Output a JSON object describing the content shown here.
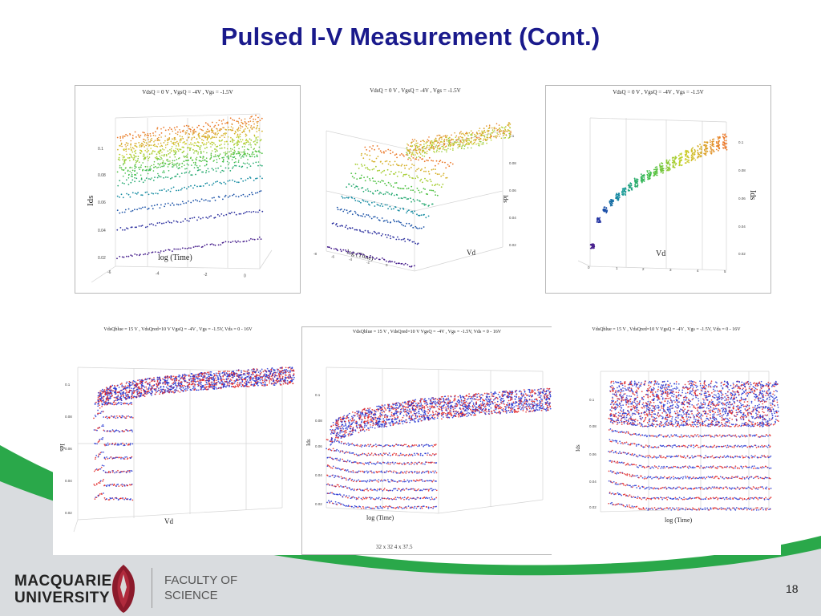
{
  "slide": {
    "title": "Pulsed I-V Measurement (Cont.)",
    "page_number": "18"
  },
  "footer": {
    "university_line1": "MACQUARIE",
    "university_line2": "UNIVERSITY",
    "faculty_line1": "FACULTY OF",
    "faculty_line2": "SCIENCE"
  },
  "colors": {
    "title": "#1a1a8c",
    "swoosh_green": "#2aa84a",
    "swoosh_grey": "#d9dcdf",
    "series_red": "#e02020",
    "series_blue": "#2030d0"
  },
  "top_plots": [
    {
      "heading": "VdsQ = 0 V , VgsQ = -4V , Vgs = -1.5V",
      "axis_labels": [
        "Ids",
        "log (Time)"
      ],
      "z_ticks": [
        "0.1",
        "0.08",
        "0.06",
        "0.04",
        "0.02"
      ],
      "x_ticks": [
        "-6",
        "-4",
        "-2",
        "0"
      ]
    },
    {
      "heading": "VdsQ = 0 V , VgsQ = -4V , Vgs = -1.5V",
      "axis_labels": [
        "Ids",
        "log (Time)",
        "Vd"
      ],
      "z_ticks": [
        "0.1",
        "0.08",
        "0.06",
        "0.04",
        "0.02"
      ],
      "x_ticks": [
        "-8",
        "-6",
        "-4",
        "-2",
        "0"
      ]
    },
    {
      "heading": "VdsQ = 0 V , VgsQ = -4V , Vgs = -1.5V",
      "axis_labels": [
        "Ids",
        "Vd"
      ],
      "z_ticks": [
        "0.1",
        "0.08",
        "0.06",
        "0.04",
        "0.02"
      ],
      "x_ticks": [
        "0",
        "1",
        "2",
        "3",
        "4",
        "5"
      ]
    }
  ],
  "bottom_plots": [
    {
      "heading": "VdsQblue = 15 V , VdsQred=10 V VgsQ = -4V , Vgs = -1.5V, Vds = 0 - 16V",
      "axis_labels": [
        "Ids",
        "Vd"
      ],
      "z_ticks": [
        "0.1",
        "0.08",
        "0.06",
        "0.04",
        "0.02"
      ]
    },
    {
      "heading": "VdsQblue = 15 V , VdsQred=10 V VgsQ = -4V , Vgs = -1.5V, Vds = 0 - 16V",
      "axis_labels": [
        "Ids",
        "log (Time)"
      ],
      "z_ticks": [
        "0.1",
        "0.08",
        "0.06",
        "0.04",
        "0.02"
      ],
      "caption": "32 x 32    4 x 37.5"
    },
    {
      "heading": "VdsQblue = 15 V , VdsQred=10 V VgsQ = -4V , Vgs = -1.5V, Vds = 0 - 16V",
      "axis_labels": [
        "Ids",
        "log (Time)"
      ],
      "z_ticks": [
        "0.1",
        "0.08",
        "0.06",
        "0.04",
        "0.02"
      ]
    }
  ]
}
